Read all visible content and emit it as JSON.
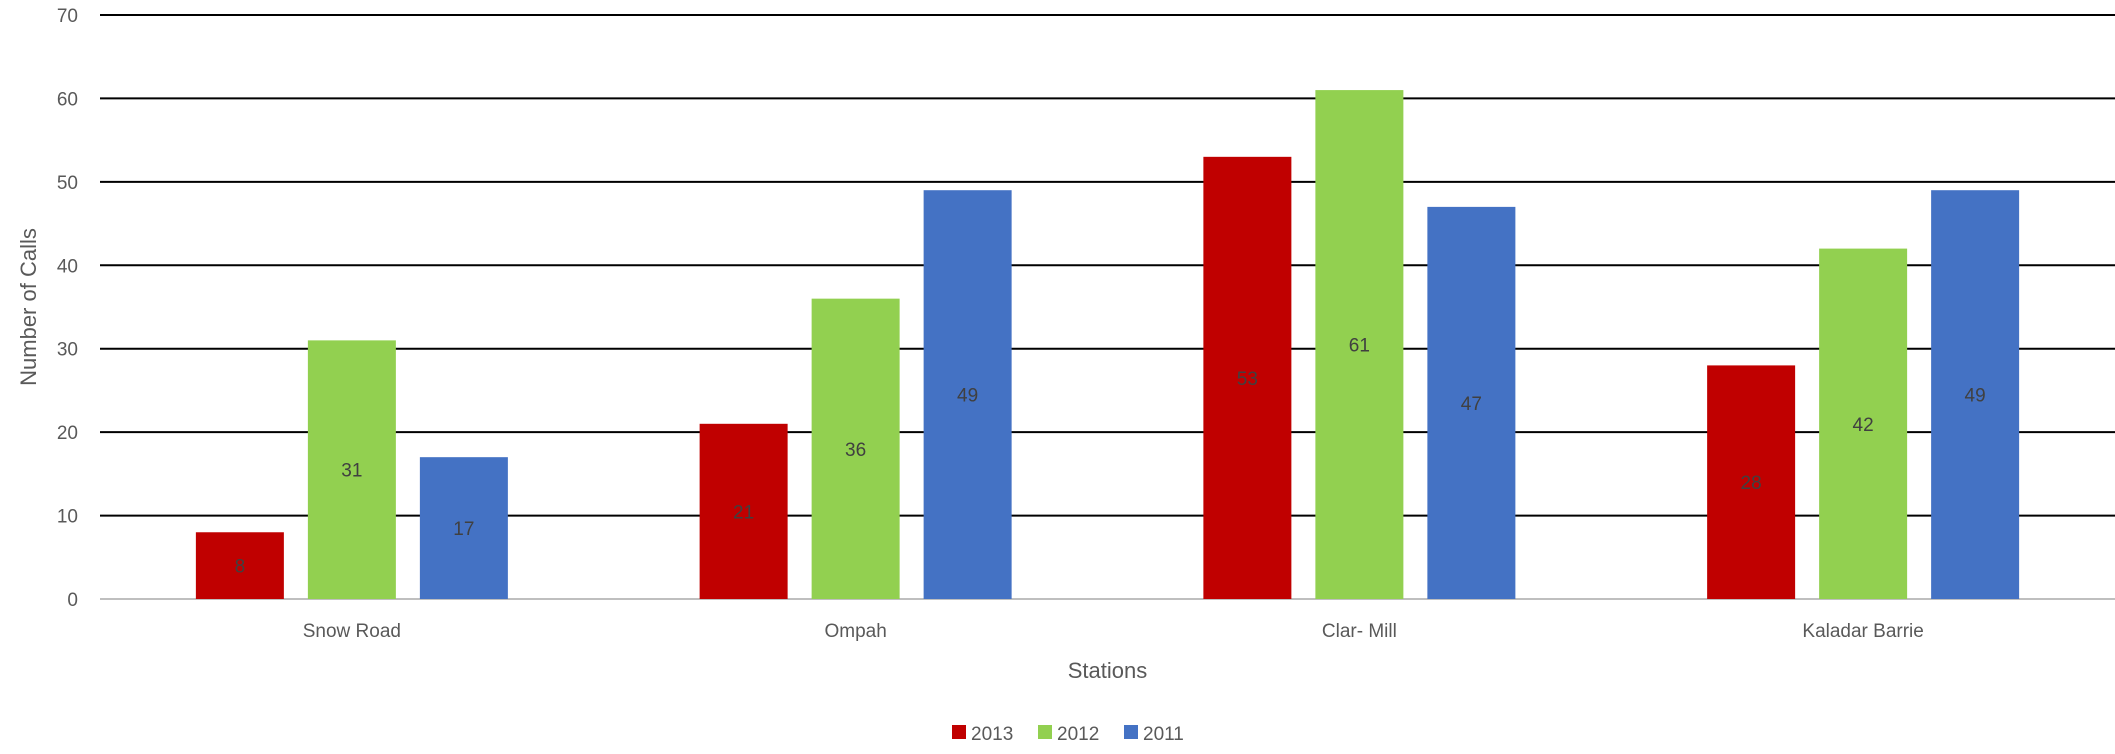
{
  "chart_data": {
    "type": "bar",
    "categories": [
      "Snow Road",
      "Ompah",
      "Clar- Mill",
      "Kaladar Barrie"
    ],
    "series": [
      {
        "name": "2013",
        "color": "#C00000",
        "values": [
          8,
          21,
          53,
          28
        ]
      },
      {
        "name": "2012",
        "color": "#92D050",
        "values": [
          31,
          36,
          61,
          42
        ]
      },
      {
        "name": "2011",
        "color": "#4472C4",
        "values": [
          17,
          49,
          47,
          49
        ]
      }
    ],
    "title": "",
    "xlabel": "Stations",
    "ylabel": "Number of Calls",
    "ylim": [
      0,
      70
    ],
    "yticks": [
      0,
      10,
      20,
      30,
      40,
      50,
      60,
      70
    ],
    "grid": true,
    "data_labels": true,
    "legend_position": "bottom"
  }
}
